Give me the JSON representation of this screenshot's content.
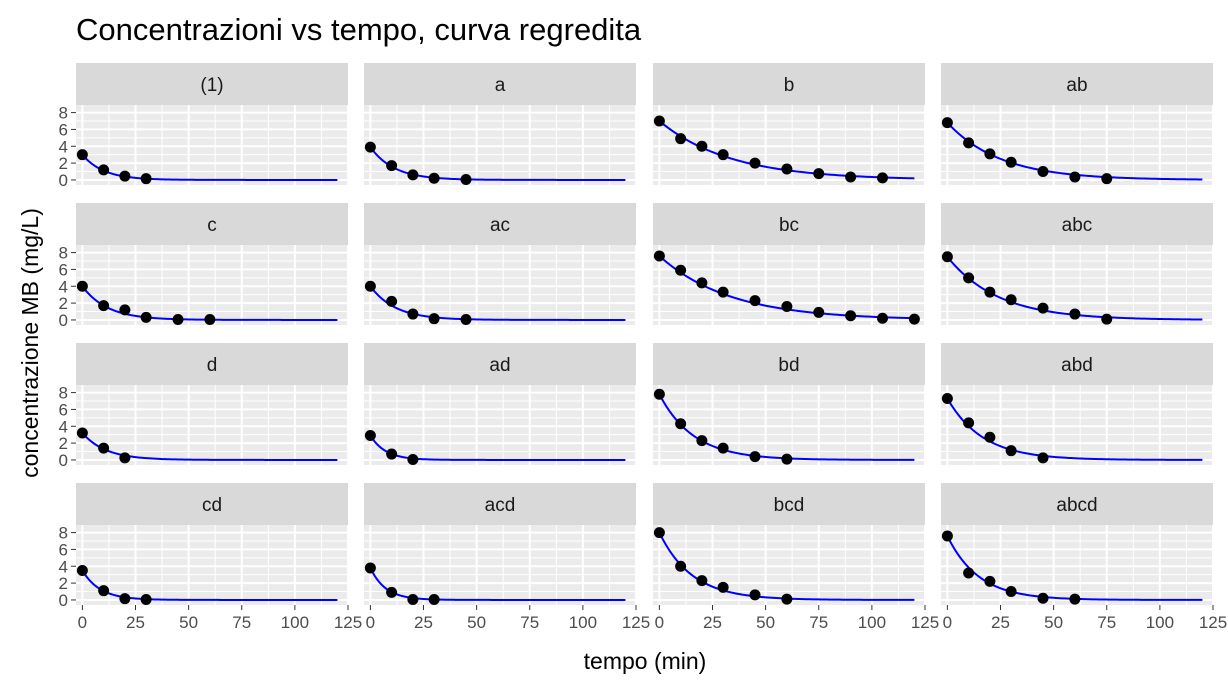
{
  "chart_data": {
    "type": "scatter",
    "title": "Concentrazioni vs tempo, curva regredita",
    "xlabel": "tempo (min)",
    "ylabel": "concentrazione MB (mg/L)",
    "xlim": [
      -3,
      125
    ],
    "ylim": [
      -0.6,
      8.9
    ],
    "x_ticks": [
      0,
      25,
      50,
      75,
      100,
      125
    ],
    "x_tick_labels": [
      "0",
      "25",
      "50",
      "75",
      "100",
      "125"
    ],
    "y_ticks": [
      0,
      2,
      4,
      6,
      8
    ],
    "y_tick_labels": [
      "0",
      "2",
      "4",
      "6",
      "8"
    ],
    "grid": true,
    "colors": {
      "panel_bg": "#ebebeb",
      "grid": "#ffffff",
      "strip_bg": "#d9d9d9",
      "points": "#000000",
      "fit_line": "#0000ff"
    },
    "fit_range": [
      0,
      120
    ],
    "panels": [
      {
        "label": "(1)",
        "x": [
          0,
          10,
          20,
          30
        ],
        "y": [
          3.0,
          1.2,
          0.45,
          0.15
        ],
        "fit": {
          "a": 3.0,
          "k": 0.1
        }
      },
      {
        "label": "a",
        "x": [
          0,
          10,
          20,
          30,
          45
        ],
        "y": [
          3.9,
          1.7,
          0.6,
          0.2,
          0.05
        ],
        "fit": {
          "a": 3.9,
          "k": 0.09
        }
      },
      {
        "label": "b",
        "x": [
          0,
          10,
          20,
          30,
          45,
          60,
          75,
          90,
          105
        ],
        "y": [
          7.0,
          4.9,
          4.0,
          3.0,
          2.0,
          1.3,
          0.75,
          0.35,
          0.25
        ],
        "fit": {
          "a": 7.0,
          "k": 0.03
        }
      },
      {
        "label": "ab",
        "x": [
          0,
          10,
          20,
          30,
          45,
          60,
          75
        ],
        "y": [
          6.8,
          4.4,
          3.1,
          2.1,
          1.0,
          0.35,
          0.15
        ],
        "fit": {
          "a": 6.8,
          "k": 0.04
        }
      },
      {
        "label": "c",
        "x": [
          0,
          10,
          20,
          30,
          45,
          60
        ],
        "y": [
          4.0,
          1.7,
          1.2,
          0.3,
          0.05,
          0.05
        ],
        "fit": {
          "a": 4.0,
          "k": 0.085
        }
      },
      {
        "label": "ac",
        "x": [
          0,
          10,
          20,
          30,
          45
        ],
        "y": [
          4.0,
          2.2,
          0.7,
          0.15,
          0.05
        ],
        "fit": {
          "a": 4.0,
          "k": 0.085
        }
      },
      {
        "label": "bc",
        "x": [
          0,
          10,
          20,
          30,
          45,
          60,
          75,
          90,
          105,
          120
        ],
        "y": [
          7.6,
          5.9,
          4.4,
          3.3,
          2.3,
          1.6,
          0.9,
          0.5,
          0.2,
          0.1
        ],
        "fit": {
          "a": 7.6,
          "k": 0.03
        }
      },
      {
        "label": "abc",
        "x": [
          0,
          10,
          20,
          30,
          45,
          60,
          75
        ],
        "y": [
          7.5,
          5.0,
          3.3,
          2.4,
          1.4,
          0.7,
          0.1
        ],
        "fit": {
          "a": 7.5,
          "k": 0.042
        }
      },
      {
        "label": "d",
        "x": [
          0,
          10,
          20
        ],
        "y": [
          3.2,
          1.4,
          0.25
        ],
        "fit": {
          "a": 3.2,
          "k": 0.09
        }
      },
      {
        "label": "ad",
        "x": [
          0,
          10,
          20
        ],
        "y": [
          2.9,
          0.7,
          0.05
        ],
        "fit": {
          "a": 2.9,
          "k": 0.14
        }
      },
      {
        "label": "bd",
        "x": [
          0,
          10,
          20,
          30,
          45,
          60
        ],
        "y": [
          7.8,
          4.3,
          2.3,
          1.4,
          0.4,
          0.1
        ],
        "fit": {
          "a": 7.8,
          "k": 0.062
        }
      },
      {
        "label": "abd",
        "x": [
          0,
          10,
          20,
          30,
          45
        ],
        "y": [
          7.3,
          4.4,
          2.7,
          1.1,
          0.25
        ],
        "fit": {
          "a": 7.3,
          "k": 0.06
        }
      },
      {
        "label": "cd",
        "x": [
          0,
          10,
          20,
          30
        ],
        "y": [
          3.5,
          1.1,
          0.15,
          0.05
        ],
        "fit": {
          "a": 3.5,
          "k": 0.12
        }
      },
      {
        "label": "acd",
        "x": [
          0,
          10,
          20,
          30
        ],
        "y": [
          3.8,
          0.9,
          0.05,
          0.05
        ],
        "fit": {
          "a": 3.8,
          "k": 0.14
        }
      },
      {
        "label": "bcd",
        "x": [
          0,
          10,
          20,
          30,
          45,
          60
        ],
        "y": [
          8.0,
          4.0,
          2.3,
          1.5,
          0.6,
          0.1
        ],
        "fit": {
          "a": 8.0,
          "k": 0.065
        }
      },
      {
        "label": "abcd",
        "x": [
          0,
          10,
          20,
          30,
          45,
          60
        ],
        "y": [
          7.6,
          3.2,
          2.2,
          1.0,
          0.2,
          0.1
        ],
        "fit": {
          "a": 7.6,
          "k": 0.068
        }
      }
    ]
  }
}
